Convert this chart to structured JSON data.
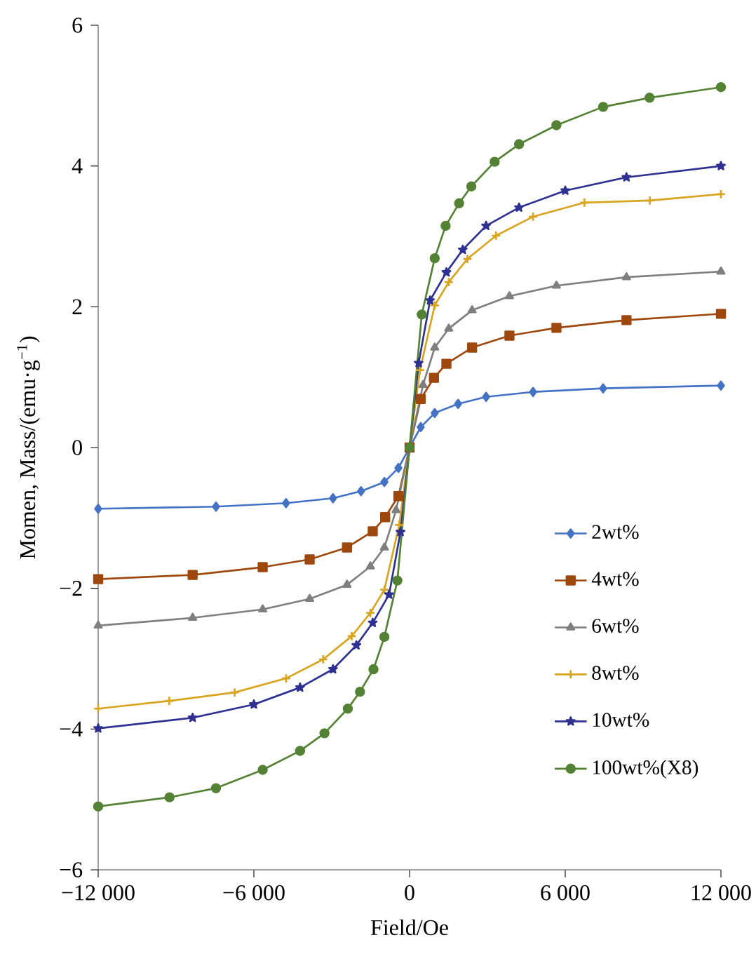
{
  "chart_data": {
    "type": "line",
    "xlabel": "Field/Oe",
    "ylabel": "Momen, Mass/(emu·g$^{−1}$)",
    "xlim": [
      -12000,
      12000
    ],
    "ylim": [
      -6,
      6
    ],
    "xticks": [
      {
        "value": -12000,
        "label": "−12 000"
      },
      {
        "value": -6000,
        "label": "−6 000"
      },
      0,
      {
        "value": 6000,
        "label": "6 000"
      },
      {
        "value": 12000,
        "label": "12 000"
      }
    ],
    "yticks": [
      {
        "value": -6,
        "label": "−6"
      },
      {
        "value": -4,
        "label": "−4"
      },
      {
        "value": -2,
        "label": "−2"
      },
      0,
      2,
      4,
      6
    ],
    "grid": false,
    "legend": "bottom right",
    "series": [
      {
        "name": "2wt%",
        "color": "#4472c4",
        "marker": "diamond",
        "x": [
          -12000,
          -7460,
          -4760,
          -2950,
          -1870,
          -970,
          -430,
          0,
          430,
          970,
          1870,
          2950,
          4760,
          7460,
          12000
        ],
        "values": [
          -0.87,
          -0.84,
          -0.79,
          -0.72,
          -0.62,
          -0.49,
          -0.29,
          0,
          0.29,
          0.49,
          0.62,
          0.72,
          0.79,
          0.84,
          0.88
        ]
      },
      {
        "name": "4wt%",
        "color": "#9e480e",
        "marker": "square",
        "x": [
          -12000,
          -8360,
          -5660,
          -3850,
          -2410,
          -1420,
          -940,
          -430,
          0,
          430,
          940,
          1420,
          2410,
          3850,
          5660,
          8360,
          12000
        ],
        "values": [
          -1.87,
          -1.81,
          -1.7,
          -1.59,
          -1.42,
          -1.19,
          -0.99,
          -0.69,
          0,
          0.69,
          0.99,
          1.19,
          1.42,
          1.59,
          1.7,
          1.81,
          1.9
        ]
      },
      {
        "name": "6wt%",
        "color": "#7f7f7f",
        "marker": "triangle",
        "x": [
          -12000,
          -8360,
          -5660,
          -3850,
          -2410,
          -1510,
          -970,
          -520,
          0,
          520,
          970,
          1510,
          2410,
          3850,
          5660,
          8360,
          12000
        ],
        "values": [
          -2.53,
          -2.42,
          -2.3,
          -2.15,
          -1.95,
          -1.69,
          -1.42,
          -0.89,
          0,
          0.89,
          1.42,
          1.69,
          1.95,
          2.15,
          2.3,
          2.42,
          2.5
        ]
      },
      {
        "name": "8wt%",
        "color": "#d9a520",
        "marker": "cross",
        "x": [
          -12000,
          -9260,
          -6740,
          -4760,
          -3330,
          -2230,
          -1510,
          -970,
          -400,
          0,
          400,
          970,
          1510,
          2230,
          3330,
          4760,
          6740,
          9260,
          12000
        ],
        "values": [
          -3.71,
          -3.6,
          -3.48,
          -3.28,
          -3.01,
          -2.68,
          -2.35,
          -2.02,
          -1.1,
          0,
          1.1,
          2.02,
          2.35,
          2.68,
          3.01,
          3.28,
          3.48,
          3.51,
          3.6
        ]
      },
      {
        "name": "10wt%",
        "color": "#2e3192",
        "marker": "star",
        "x": [
          -12000,
          -8360,
          -6000,
          -4220,
          -2950,
          -2050,
          -1420,
          -790,
          -350,
          0,
          350,
          790,
          1420,
          2050,
          2950,
          4220,
          6000,
          8360,
          12000
        ],
        "values": [
          -3.99,
          -3.84,
          -3.65,
          -3.41,
          -3.15,
          -2.81,
          -2.49,
          -2.09,
          -1.2,
          0,
          1.2,
          2.09,
          2.49,
          2.81,
          3.15,
          3.41,
          3.65,
          3.84,
          4.0
        ]
      },
      {
        "name": "100wt%(X8)",
        "color": "#548235",
        "marker": "circle",
        "x": [
          -12000,
          -9250,
          -7460,
          -5660,
          -4220,
          -3280,
          -2380,
          -1910,
          -1390,
          -970,
          -470,
          0,
          470,
          970,
          1390,
          1910,
          2380,
          3280,
          4220,
          5660,
          7460,
          9250,
          12000
        ],
        "values": [
          -5.1,
          -4.97,
          -4.84,
          -4.58,
          -4.31,
          -4.06,
          -3.71,
          -3.47,
          -3.15,
          -2.69,
          -1.89,
          0,
          1.89,
          2.69,
          3.15,
          3.47,
          3.71,
          4.06,
          4.31,
          4.58,
          4.84,
          4.97,
          5.12
        ]
      }
    ]
  }
}
